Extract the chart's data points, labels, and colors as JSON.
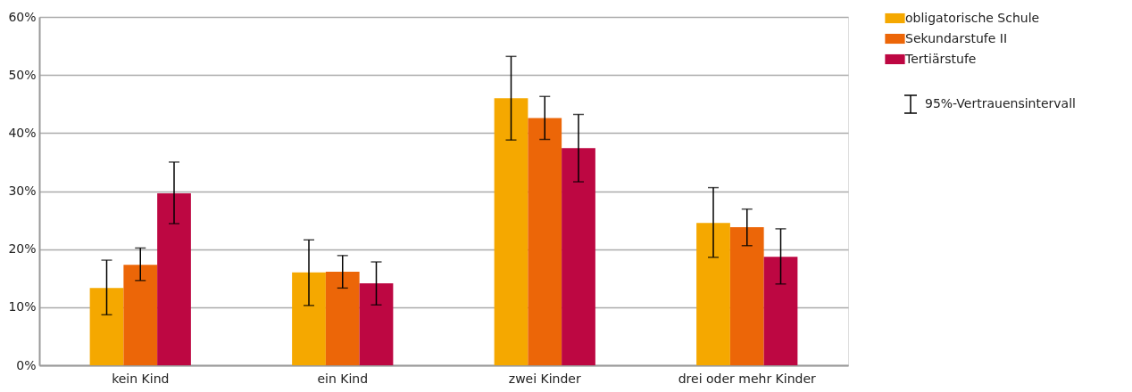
{
  "chart_data": {
    "type": "bar",
    "categories": [
      "kein Kind",
      "ein Kind",
      "zwei Kinder",
      "drei oder mehr Kinder"
    ],
    "series": [
      {
        "name": "obligatorische Schule",
        "color": "#f5a800",
        "values": [
          13.3,
          16.0,
          46.0,
          24.5
        ],
        "errors": [
          [
            8.7,
            18.1
          ],
          [
            10.3,
            21.6
          ],
          [
            38.8,
            53.2
          ],
          [
            18.6,
            30.6
          ]
        ]
      },
      {
        "name": "Sekundarstufe II",
        "color": "#ec6608",
        "values": [
          17.3,
          16.1,
          42.6,
          23.8
        ],
        "errors": [
          [
            14.6,
            20.2
          ],
          [
            13.3,
            18.9
          ],
          [
            38.9,
            46.3
          ],
          [
            20.6,
            26.9
          ]
        ]
      },
      {
        "name": "Tertiärstufe",
        "color": "#bd0742",
        "values": [
          29.6,
          14.1,
          37.4,
          18.7
        ],
        "errors": [
          [
            24.4,
            35.0
          ],
          [
            10.4,
            17.8
          ],
          [
            31.6,
            43.2
          ],
          [
            14.0,
            23.5
          ]
        ]
      }
    ],
    "ylim": [
      0,
      60
    ],
    "yticks": [
      {
        "value": 0,
        "label": "0%"
      },
      {
        "value": 10,
        "label": "10%"
      },
      {
        "value": 20,
        "label": "20%"
      },
      {
        "value": 30,
        "label": "30%"
      },
      {
        "value": 40,
        "label": "40%"
      },
      {
        "value": 50,
        "label": "50%"
      },
      {
        "value": 60,
        "label": "60%"
      }
    ],
    "grid": "y",
    "legend": "top right",
    "annotations": [
      "95%-Vertrauensintervall"
    ]
  }
}
